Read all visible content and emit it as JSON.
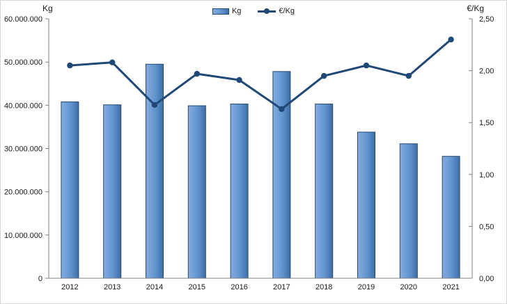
{
  "chart_data": {
    "type": "combo-bar-line",
    "title": "",
    "categories": [
      "2012",
      "2013",
      "2014",
      "2015",
      "2016",
      "2017",
      "2018",
      "2019",
      "2020",
      "2021"
    ],
    "series": [
      {
        "name": "Kg",
        "type": "bar",
        "axis": "left",
        "values": [
          40800000,
          40100000,
          49500000,
          39900000,
          40300000,
          47800000,
          40300000,
          33800000,
          31100000,
          28200000
        ]
      },
      {
        "name": "€/Kg",
        "type": "line",
        "axis": "right",
        "values": [
          2.05,
          2.08,
          1.67,
          1.97,
          1.91,
          1.63,
          1.95,
          2.05,
          1.95,
          2.3
        ]
      }
    ],
    "left_axis": {
      "title": "Kg",
      "min": 0,
      "max": 60000000,
      "tick_labels": [
        "0",
        "10.000.000",
        "20.000.000",
        "30.000.000",
        "40.000.000",
        "50.000.000",
        "60.000.000"
      ]
    },
    "right_axis": {
      "title": "€/Kg",
      "min": 0,
      "max": 2.5,
      "tick_labels": [
        "0,00",
        "0,50",
        "1,00",
        "1,50",
        "2,00",
        "2,50"
      ]
    },
    "legend_position": "top-center",
    "grid": "off",
    "colors": {
      "bar_fill_light": "#85ACDE",
      "bar_fill_mid": "#6094CF",
      "bar_fill_dark": "#3E6DA5",
      "bar_border": "#26496F",
      "line": "#1F4876",
      "axis": "#808080",
      "text": "#1a1a1a",
      "background": "#ffffff"
    }
  }
}
